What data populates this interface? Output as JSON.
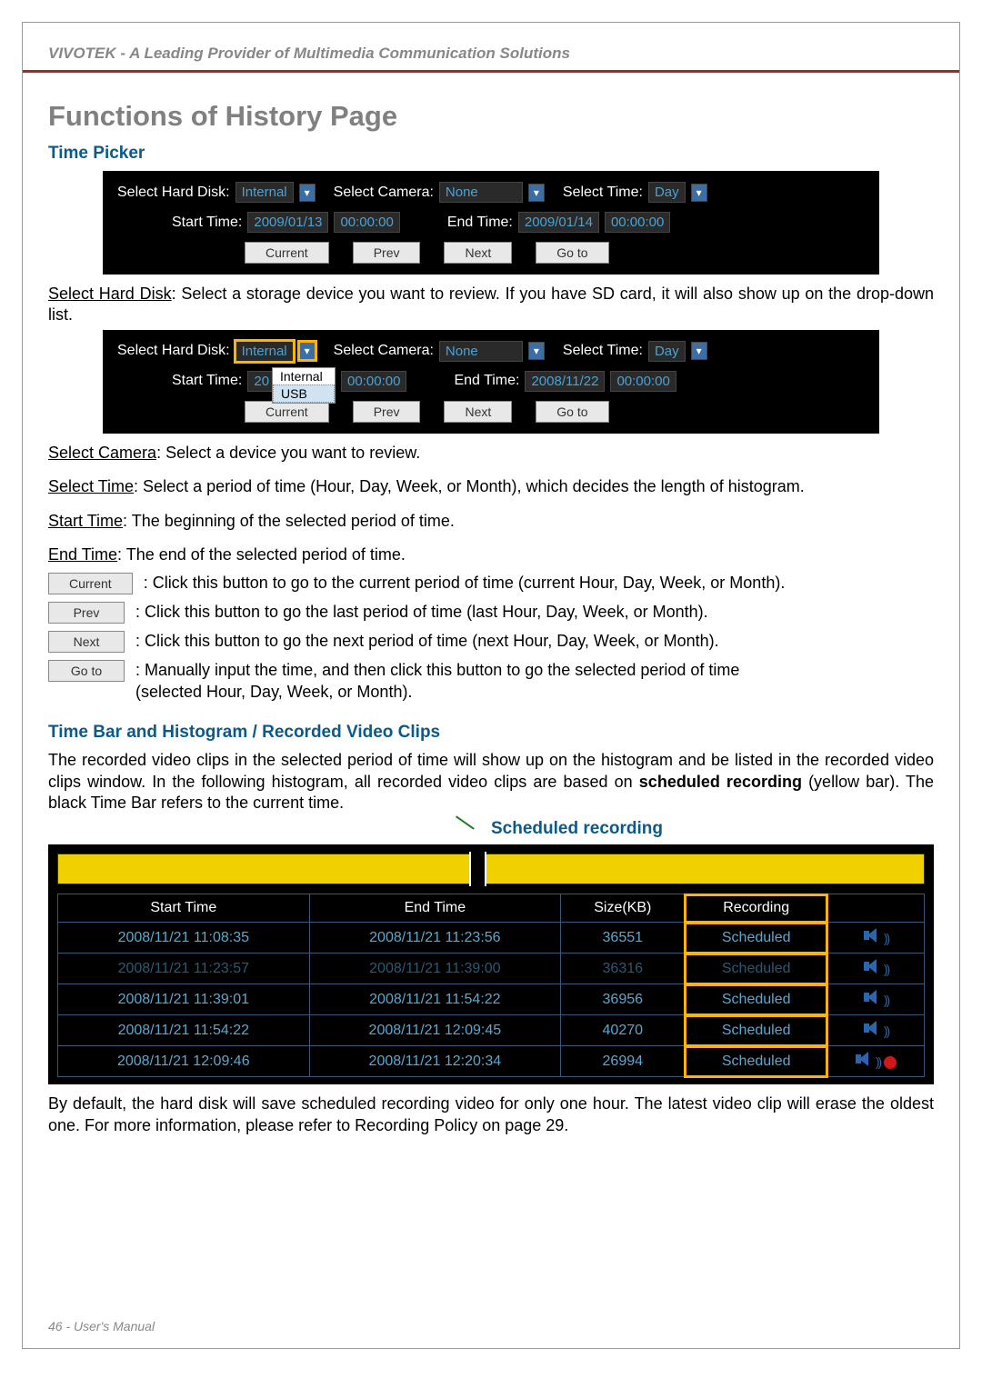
{
  "header": "VIVOTEK - A Leading Provider of Multimedia Communication Solutions",
  "title": "Functions of History Page",
  "section1": {
    "heading": "Time Picker",
    "labels": {
      "selectHardDisk": "Select Hard Disk:",
      "selectCamera": "Select Camera:",
      "selectTime": "Select Time:",
      "startTime": "Start Time:",
      "endTime": "End Time:"
    },
    "panel1": {
      "hardDisk": "Internal",
      "camera": "None",
      "time": "Day",
      "startDate": "2009/01/13",
      "startClock": "00:00:00",
      "endDate": "2009/01/14",
      "endClock": "00:00:00"
    },
    "panel2": {
      "hardDisk": "Internal",
      "camera": "None",
      "time": "Day",
      "startDate": "20",
      "startClock": "00:00:00",
      "endDate": "2008/11/22",
      "endClock": "00:00:00",
      "dropdown": {
        "opt1": "Internal",
        "opt2": "USB"
      }
    },
    "buttons": {
      "current": "Current",
      "prev": "Prev",
      "next": "Next",
      "goto": "Go to"
    },
    "descSelectHardDisk": ": Select a storage device you want to review. If you have SD card, it will also show up on the drop-down list.",
    "descSelectCamera": ": Select a device you want to review.",
    "descSelectTime": ": Select a period of time (Hour, Day, Week, or Month), which decides the length of histogram.",
    "descStartTime": ": The beginning of the selected period of time.",
    "descEndTime": ": The end of the selected period of time.",
    "descCurrent": ": Click this button to go to the current period of time (current Hour, Day, Week, or Month).",
    "descPrev": ": Click this button to go the last period of time (last Hour, Day, Week, or Month).",
    "descNext": ": Click this button to go the next period of time (next Hour, Day, Week, or Month).",
    "descGoto1": ": Manually input the time, and then click this button to go the selected period of time",
    "descGoto2": "(selected Hour, Day, Week, or Month)."
  },
  "section2": {
    "heading": "Time Bar and Histogram / Recorded Video Clips",
    "intro1": "The recorded video clips in the selected period of time will show up on the histogram and be listed in the recorded video clips window. In the following histogram, all recorded video clips are based on ",
    "introBold": "scheduled recording",
    "intro2": " (yellow bar). The black Time Bar refers to the current time.",
    "scheduledLabel": "Scheduled recording",
    "columns": {
      "start": "Start Time",
      "end": "End Time",
      "size": "Size(KB)",
      "rec": "Recording",
      "last": ""
    },
    "rows": [
      {
        "start": "2008/11/21 11:08:35",
        "end": "2008/11/21 11:23:56",
        "size": "36551",
        "rec": "Scheduled",
        "dim": false,
        "recording": false
      },
      {
        "start": "2008/11/21 11:23:57",
        "end": "2008/11/21 11:39:00",
        "size": "36316",
        "rec": "Scheduled",
        "dim": true,
        "recording": false
      },
      {
        "start": "2008/11/21 11:39:01",
        "end": "2008/11/21 11:54:22",
        "size": "36956",
        "rec": "Scheduled",
        "dim": false,
        "recording": false
      },
      {
        "start": "2008/11/21 11:54:22",
        "end": "2008/11/21 12:09:45",
        "size": "40270",
        "rec": "Scheduled",
        "dim": false,
        "recording": false
      },
      {
        "start": "2008/11/21 12:09:46",
        "end": "2008/11/21 12:20:34",
        "size": "26994",
        "rec": "Scheduled",
        "dim": false,
        "recording": true
      }
    ],
    "footnote": "By default, the hard disk will save scheduled recording video for only one hour. The latest video clip will erase the oldest one. For more information, please refer to Recording Policy on page 29."
  },
  "footer": "46 - User's Manual",
  "colors": {
    "headerText": "#888787",
    "headerRule": "#a02a28",
    "titleText": "#808080",
    "subheadBlue": "#0a5a8a",
    "panelBg": "#000000",
    "valueText": "#4aa3d4",
    "highlight": "#ffb400",
    "tableBorder": "#3a5a7a",
    "histogramBar": "#f0d000",
    "redDot": "#d01818"
  }
}
